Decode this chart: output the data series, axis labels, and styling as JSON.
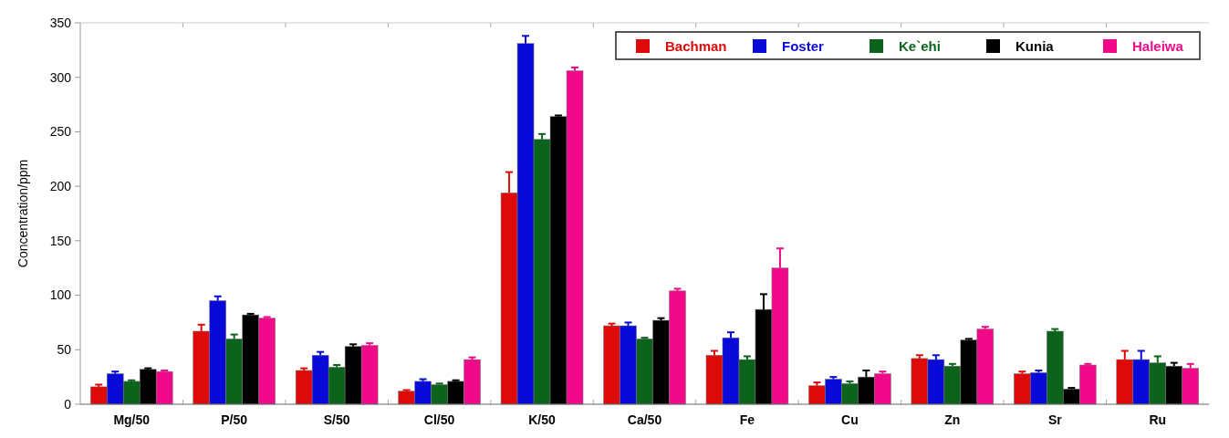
{
  "chart_data": {
    "type": "bar",
    "ylabel": "Concentration/ppm",
    "categories": [
      "Mg/50",
      "P/50",
      "S/50",
      "Cl/50",
      "K/50",
      "Ca/50",
      "Fe",
      "Cu",
      "Zn",
      "Sr",
      "Ru"
    ],
    "ylim": [
      0,
      350
    ],
    "yticks": [
      0,
      50,
      100,
      150,
      200,
      250,
      300,
      350
    ],
    "grid": false,
    "legend": "top right",
    "series": [
      {
        "name": "Bachman",
        "color": "#de0a0a",
        "values": [
          16,
          67,
          31,
          12,
          194,
          72,
          45,
          17,
          42,
          28,
          41
        ],
        "errors": [
          [
            16,
            18
          ],
          [
            67,
            73
          ],
          [
            31,
            33
          ],
          [
            12,
            13
          ],
          [
            194,
            213
          ],
          [
            72,
            74
          ],
          [
            45,
            49
          ],
          [
            17,
            20
          ],
          [
            42,
            45
          ],
          [
            28,
            30
          ],
          [
            41,
            49
          ]
        ]
      },
      {
        "name": "Foster",
        "color": "#0a0ad8",
        "values": [
          28,
          95,
          45,
          21,
          331,
          72,
          61,
          23,
          41,
          29,
          41
        ],
        "errors": [
          [
            28,
            30
          ],
          [
            95,
            99
          ],
          [
            45,
            48
          ],
          [
            21,
            23
          ],
          [
            331,
            338
          ],
          [
            72,
            75
          ],
          [
            61,
            66
          ],
          [
            23,
            25
          ],
          [
            41,
            45
          ],
          [
            29,
            31
          ],
          [
            41,
            49
          ]
        ]
      },
      {
        "name": "Ke`ehi",
        "color": "#0b631c",
        "values": [
          21,
          60,
          34,
          18,
          243,
          60,
          41,
          19,
          35,
          67,
          38
        ],
        "errors": [
          [
            21,
            22
          ],
          [
            60,
            64
          ],
          [
            34,
            36
          ],
          [
            18,
            19
          ],
          [
            243,
            248
          ],
          [
            60,
            61
          ],
          [
            41,
            44
          ],
          [
            19,
            21
          ],
          [
            35,
            37
          ],
          [
            67,
            69
          ],
          [
            38,
            44
          ]
        ]
      },
      {
        "name": "Kunia",
        "color": "#000000",
        "values": [
          32,
          82,
          53,
          21,
          264,
          77,
          87,
          25,
          59,
          14,
          35
        ],
        "errors": [
          [
            32,
            33
          ],
          [
            82,
            83
          ],
          [
            53,
            55
          ],
          [
            21,
            22
          ],
          [
            264,
            265
          ],
          [
            77,
            79
          ],
          [
            87,
            101
          ],
          [
            25,
            31
          ],
          [
            59,
            60
          ],
          [
            14,
            15
          ],
          [
            35,
            38
          ]
        ]
      },
      {
        "name": "Haleiwa",
        "color": "#f00a8a",
        "values": [
          30,
          79,
          54,
          41,
          306,
          104,
          125,
          28,
          69,
          36,
          33
        ],
        "errors": [
          [
            30,
            31
          ],
          [
            79,
            80
          ],
          [
            54,
            56
          ],
          [
            41,
            43
          ],
          [
            306,
            309
          ],
          [
            104,
            106
          ],
          [
            125,
            143
          ],
          [
            28,
            30
          ],
          [
            69,
            71
          ],
          [
            36,
            37
          ],
          [
            33,
            37
          ]
        ]
      }
    ]
  }
}
